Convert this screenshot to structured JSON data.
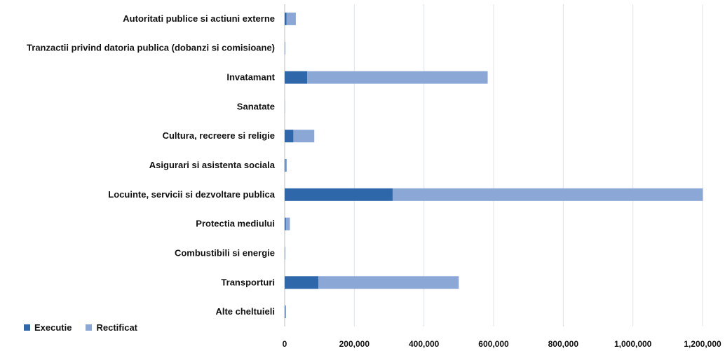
{
  "chart_data": {
    "type": "bar",
    "orientation": "horizontal",
    "stacked": true,
    "categories": [
      "Autoritati publice si actiuni externe",
      "Tranzactii privind datoria publica (dobanzi si comisioane)",
      "Invatamant",
      "Sanatate",
      "Cultura, recreere si religie",
      "Asigurari si asistenta sociala",
      "Locuinte, servicii si dezvoltare publica",
      "Protectia mediului",
      "Combustibili si energie",
      "Transporturi",
      "Alte cheltuieli"
    ],
    "series": [
      {
        "name": "Executie",
        "color": "#2e67aa",
        "values": [
          5000,
          0,
          65000,
          0,
          25000,
          2000,
          310000,
          3000,
          0,
          97000,
          1000
        ]
      },
      {
        "name": "Rectificat",
        "color": "#8aa7d6",
        "values": [
          27000,
          2000,
          518000,
          1000,
          60000,
          4000,
          891000,
          12000,
          2000,
          403000,
          3000
        ]
      }
    ],
    "xlim": [
      0,
      1200000
    ],
    "xticks": [
      0,
      200000,
      400000,
      600000,
      800000,
      1000000,
      1200000
    ],
    "xtick_labels": [
      "0",
      "200,000",
      "400,000",
      "600,000",
      "800,000",
      "1,000,000",
      "1,200,000"
    ],
    "grid": true,
    "legend_position": "bottom-left",
    "title": "",
    "xlabel": "",
    "ylabel": ""
  }
}
